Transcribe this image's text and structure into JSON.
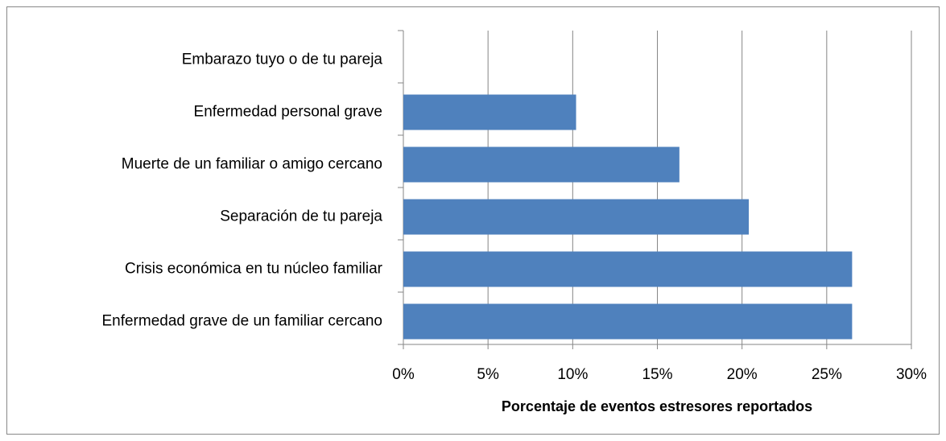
{
  "chart_data": {
    "type": "bar",
    "orientation": "horizontal",
    "x_label": "Porcentaje de eventos estresores reportados",
    "categories": [
      "Embarazo tuyo o de tu pareja",
      "Enfermedad personal grave",
      "Muerte de un familiar o amigo cercano",
      "Separación de tu pareja",
      "Crisis económica en tu núcleo familiar",
      "Enfermedad grave de un familiar cercano"
    ],
    "values": [
      0,
      10.2,
      16.3,
      20.4,
      26.5,
      26.5
    ],
    "color": "#4f81bd",
    "xlim": [
      0,
      30
    ],
    "xticks": [
      {
        "value": 0,
        "label": "0%"
      },
      {
        "value": 5,
        "label": "5%"
      },
      {
        "value": 10,
        "label": "10%"
      },
      {
        "value": 15,
        "label": "15%"
      },
      {
        "value": 20,
        "label": "20%"
      },
      {
        "value": 25,
        "label": "25%"
      },
      {
        "value": 30,
        "label": "30%"
      }
    ],
    "grid": true
  }
}
